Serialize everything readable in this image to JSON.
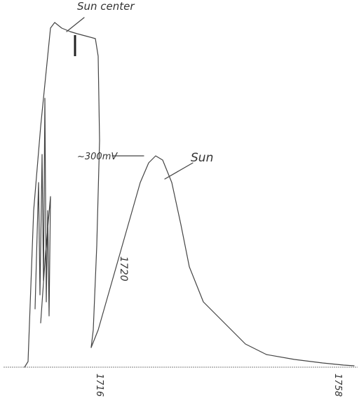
{
  "annotations": {
    "sun_center": "Sun center",
    "level": "~300mV",
    "sun": "Sun",
    "time_mid": "1720",
    "time_start": "1716",
    "time_end": "1758"
  }
}
